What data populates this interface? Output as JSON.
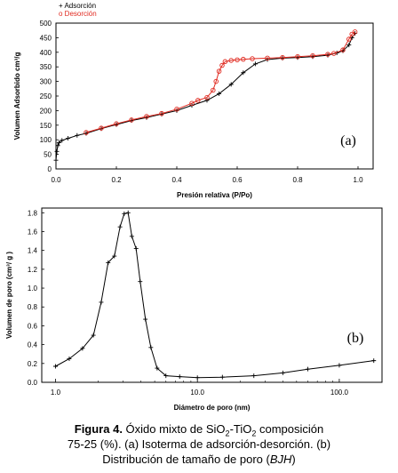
{
  "chart_data": [
    {
      "type": "scatter",
      "panel_label": "(a)",
      "xlabel": "Presión relativa (P/Po)",
      "ylabel": "Volumen Adsorbido cm³/g",
      "xlim": [
        0,
        1.05
      ],
      "ylim": [
        0,
        500
      ],
      "xticks": [
        "0.0",
        "0.2",
        "0.4",
        "0.6",
        "0.8",
        "1.0"
      ],
      "yticks": [
        "0",
        "50",
        "100",
        "150",
        "200",
        "250",
        "300",
        "350",
        "400",
        "450",
        "500"
      ],
      "legend_position": "top-left",
      "series": [
        {
          "name": "+ Adsorción",
          "color": "#000000",
          "marker": "plus",
          "x": [
            0.0,
            0.003,
            0.006,
            0.01,
            0.02,
            0.04,
            0.07,
            0.1,
            0.15,
            0.2,
            0.25,
            0.3,
            0.35,
            0.4,
            0.45,
            0.5,
            0.54,
            0.58,
            0.62,
            0.66,
            0.7,
            0.75,
            0.8,
            0.85,
            0.9,
            0.93,
            0.95,
            0.97,
            0.98,
            0.99
          ],
          "y": [
            30,
            60,
            80,
            90,
            98,
            105,
            115,
            122,
            138,
            152,
            166,
            176,
            188,
            200,
            218,
            235,
            258,
            290,
            330,
            360,
            375,
            380,
            382,
            385,
            390,
            398,
            405,
            425,
            450,
            465
          ]
        },
        {
          "name": "o Desorción",
          "color": "#e02a20",
          "marker": "circle",
          "x": [
            0.99,
            0.98,
            0.97,
            0.95,
            0.92,
            0.9,
            0.85,
            0.8,
            0.75,
            0.7,
            0.65,
            0.62,
            0.6,
            0.58,
            0.56,
            0.55,
            0.54,
            0.53,
            0.52,
            0.5,
            0.47,
            0.45,
            0.4,
            0.35,
            0.3,
            0.25,
            0.2,
            0.15,
            0.1
          ],
          "y": [
            470,
            462,
            445,
            408,
            396,
            393,
            388,
            385,
            382,
            380,
            378,
            376,
            374,
            372,
            368,
            355,
            335,
            300,
            270,
            245,
            235,
            225,
            205,
            190,
            180,
            168,
            155,
            140,
            125
          ]
        }
      ]
    },
    {
      "type": "line",
      "panel_label": "(b)",
      "xlabel": "Diámetro de poro (nm)",
      "ylabel": "Volumen de poro (cm³/ g )",
      "xscale": "log",
      "xlim": [
        0.8,
        200
      ],
      "ylim": [
        0,
        1.85
      ],
      "xticks": [
        "1.0",
        "10.0",
        "100.0"
      ],
      "yticks": [
        "0.0",
        "0.2",
        "0.4",
        "0.6",
        "0.8",
        "1.0",
        "1.2",
        "1.4",
        "1.6",
        "1.8"
      ],
      "series": [
        {
          "color": "#000000",
          "marker": "plus",
          "x": [
            1.0,
            1.25,
            1.55,
            1.85,
            2.1,
            2.35,
            2.6,
            2.85,
            3.05,
            3.25,
            3.45,
            3.7,
            3.95,
            4.3,
            4.7,
            5.2,
            6.0,
            7.5,
            10,
            15,
            25,
            40,
            60,
            100,
            175
          ],
          "y": [
            0.17,
            0.25,
            0.36,
            0.5,
            0.85,
            1.27,
            1.34,
            1.65,
            1.79,
            1.8,
            1.55,
            1.42,
            1.07,
            0.67,
            0.37,
            0.15,
            0.07,
            0.06,
            0.05,
            0.055,
            0.07,
            0.1,
            0.14,
            0.18,
            0.23
          ]
        }
      ]
    }
  ],
  "caption": {
    "fig_label": "Figura 4.",
    "part1": " Óxido mixto de SiO",
    "sub1": "2",
    "part2": "-TiO",
    "sub2": "2",
    "part3": " composición",
    "line2": "75-25 (%). (a) Isoterma de adsorción-desorción. (b)",
    "line3a": "Distribución de tamaño de poro (",
    "line3b": "BJH",
    "line3c": ")"
  }
}
